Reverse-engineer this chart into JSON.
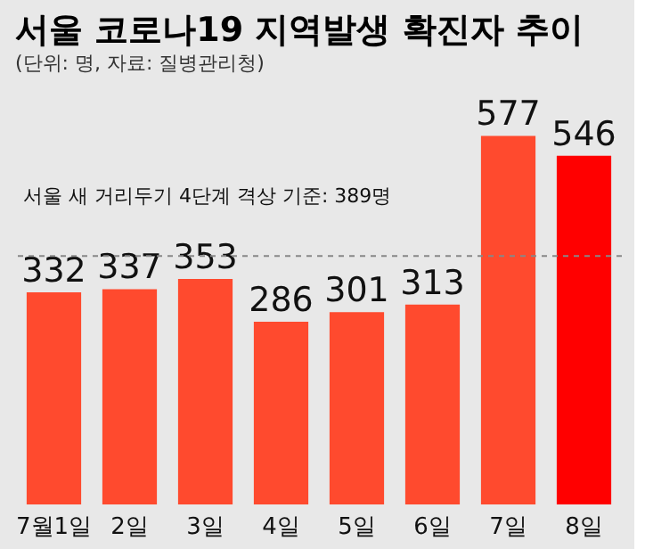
{
  "chart_data": {
    "type": "bar",
    "title": "서울 코로나19 지역발생 확진자 추이",
    "subtitle": "(단위: 명, 자료: 질병관리청)",
    "categories": [
      "7월1일",
      "2일",
      "3일",
      "4일",
      "5일",
      "6일",
      "7일",
      "8일"
    ],
    "values": [
      332,
      337,
      353,
      286,
      301,
      313,
      577,
      546
    ],
    "colors": [
      "#ff4a2e",
      "#ff4a2e",
      "#ff4a2e",
      "#ff4a2e",
      "#ff4a2e",
      "#ff4a2e",
      "#ff4a2e",
      "#ff0000"
    ],
    "data_labels": true,
    "grid": false,
    "ref_lines": [
      {
        "axis": "y",
        "value": 389,
        "label": "서울 새 거리두기 4단계 격상 기준: 389명",
        "color": "#888888",
        "line_style": "dashed"
      }
    ]
  }
}
